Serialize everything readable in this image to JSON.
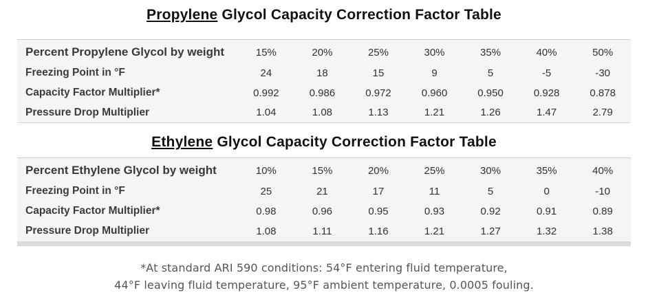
{
  "colors": {
    "table_background": "#f5f5f6",
    "table_border_top": "#cccccc",
    "table_border_bottom": "#d6d6d6",
    "scrollbar_strip": "#dcdcdc",
    "title_text": "#111111",
    "label_text": "#3b3b3d",
    "value_text": "#313133",
    "footnote_text": "#54555a",
    "page_background": "#ffffff"
  },
  "tables": [
    {
      "title_underlined": "Propylene",
      "title_rest": " Glycol Capacity Correction Factor Table",
      "header_label": "Percent Propylene Glycol by weight",
      "header_values": [
        "15%",
        "20%",
        "25%",
        "30%",
        "35%",
        "40%",
        "50%"
      ],
      "rows": [
        {
          "label": "Freezing Point in °F",
          "values": [
            "24",
            "18",
            "15",
            "9",
            "5",
            "-5",
            "-30"
          ]
        },
        {
          "label": "Capacity Factor Multiplier*",
          "values": [
            "0.992",
            "0.986",
            "0.972",
            "0.960",
            "0.950",
            "0.928",
            "0.878"
          ]
        },
        {
          "label": "Pressure Drop Multiplier",
          "values": [
            "1.04",
            "1.08",
            "1.13",
            "1.21",
            "1.26",
            "1.47",
            "2.79"
          ]
        }
      ]
    },
    {
      "title_underlined": "Ethylene",
      "title_rest": " Glycol Capacity Correction Factor Table",
      "header_label": "Percent Ethylene Glycol by weight",
      "header_values": [
        "10%",
        "15%",
        "20%",
        "25%",
        "30%",
        "35%",
        "40%"
      ],
      "rows": [
        {
          "label": "Freezing Point in °F",
          "values": [
            "25",
            "21",
            "17",
            "11",
            "5",
            "0",
            "-10"
          ]
        },
        {
          "label": "Capacity Factor Multiplier*",
          "values": [
            "0.98",
            "0.96",
            "0.95",
            "0.93",
            "0.92",
            "0.91",
            "0.89"
          ]
        },
        {
          "label": "Pressure Drop Multiplier",
          "values": [
            "1.08",
            "1.11",
            "1.16",
            "1.21",
            "1.27",
            "1.32",
            "1.38"
          ]
        }
      ]
    }
  ],
  "footnote": {
    "line1": "*At standard ARI 590 conditions: 54°F entering fluid temperature,",
    "line2": "44°F leaving fluid temperature, 95°F ambient temperature, 0.0005 fouling."
  }
}
